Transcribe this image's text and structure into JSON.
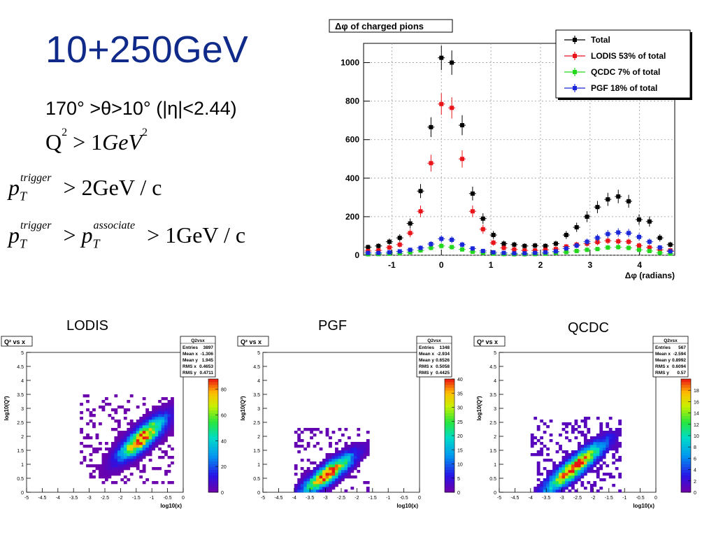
{
  "slide": {
    "title": "10+250GeV",
    "condition": "170° >θ>10° (|η|<2.44)",
    "formulas": {
      "q2_lhs": "Q",
      "q2_sup": "2",
      "q2_rhs": " > 1",
      "q2_unit": "GeV",
      "q2_unit_sup": "2",
      "pt_main": "p",
      "pt_sub": "T",
      "pt_trigger_sup": "trigger",
      "pt_trigger_rhs": " > 2GeV / c",
      "pt_assoc_sup": "associate",
      "pt_assoc_mid": " > ",
      "pt_assoc_rhs": " > 1GeV / c"
    }
  },
  "panel_labels": {
    "lodis": "LODIS",
    "pgf": "PGF",
    "qcdc": "QCDC"
  },
  "chart_data": [
    {
      "type": "scatter",
      "title": "Δφ of charged pions",
      "xlabel": "Δφ (radians)",
      "ylabel": "",
      "xlim": [
        -1.57,
        4.71
      ],
      "ylim": [
        0,
        1100
      ],
      "xticks": [
        -1,
        0,
        1,
        2,
        3,
        4
      ],
      "yticks": [
        0,
        200,
        400,
        600,
        800,
        1000
      ],
      "grid": true,
      "legend_position": "top-right",
      "series": [
        {
          "name": "Total",
          "color": "#000000",
          "x": [
            -1.48,
            -1.27,
            -1.05,
            -0.84,
            -0.63,
            -0.42,
            -0.21,
            0.0,
            0.21,
            0.42,
            0.63,
            0.84,
            1.05,
            1.26,
            1.47,
            1.68,
            1.89,
            2.1,
            2.31,
            2.52,
            2.73,
            2.94,
            3.15,
            3.36,
            3.57,
            3.78,
            3.99,
            4.2,
            4.41,
            4.62
          ],
          "y": [
            42,
            48,
            70,
            90,
            165,
            333,
            665,
            1025,
            1000,
            675,
            320,
            190,
            105,
            60,
            55,
            48,
            50,
            48,
            60,
            105,
            145,
            200,
            250,
            290,
            305,
            280,
            185,
            175,
            90,
            55
          ]
        },
        {
          "name": "LODIS 53% of total",
          "color": "#e8141a",
          "x": [
            -1.48,
            -1.27,
            -1.05,
            -0.84,
            -0.63,
            -0.42,
            -0.21,
            0.0,
            0.21,
            0.42,
            0.63,
            0.84,
            1.05,
            1.26,
            1.47,
            1.68,
            1.89,
            2.1,
            2.31,
            2.52,
            2.73,
            2.94,
            3.15,
            3.36,
            3.57,
            3.78,
            3.99,
            4.2,
            4.41,
            4.62
          ],
          "y": [
            22,
            25,
            40,
            55,
            115,
            228,
            478,
            785,
            765,
            500,
            228,
            135,
            65,
            38,
            30,
            25,
            25,
            28,
            32,
            45,
            55,
            60,
            68,
            75,
            72,
            70,
            50,
            40,
            28,
            25
          ]
        },
        {
          "name": "QCDC 7% of total",
          "color": "#22d81c",
          "x": [
            -1.48,
            -1.27,
            -1.05,
            -0.84,
            -0.63,
            -0.42,
            -0.21,
            0.0,
            0.21,
            0.42,
            0.63,
            0.84,
            1.05,
            1.26,
            1.47,
            1.68,
            1.89,
            2.1,
            2.31,
            2.52,
            2.73,
            2.94,
            3.15,
            3.36,
            3.57,
            3.78,
            3.99,
            4.2,
            4.41,
            4.62
          ],
          "y": [
            5,
            6,
            8,
            10,
            15,
            25,
            38,
            48,
            42,
            30,
            18,
            12,
            8,
            6,
            5,
            5,
            6,
            8,
            12,
            16,
            22,
            28,
            32,
            40,
            42,
            38,
            28,
            22,
            12,
            8
          ]
        },
        {
          "name": "PGF 18% of total",
          "color": "#1a28d8",
          "x": [
            -1.48,
            -1.27,
            -1.05,
            -0.84,
            -0.63,
            -0.42,
            -0.21,
            0.0,
            0.21,
            0.42,
            0.63,
            0.84,
            1.05,
            1.26,
            1.47,
            1.68,
            1.89,
            2.1,
            2.31,
            2.52,
            2.73,
            2.94,
            3.15,
            3.36,
            3.57,
            3.78,
            3.99,
            4.2,
            4.41,
            4.62
          ],
          "y": [
            12,
            12,
            15,
            20,
            28,
            38,
            58,
            85,
            80,
            55,
            35,
            22,
            15,
            12,
            10,
            10,
            12,
            15,
            20,
            35,
            50,
            70,
            90,
            110,
            118,
            115,
            95,
            70,
            40,
            20
          ]
        }
      ]
    },
    {
      "type": "heatmap",
      "key": "lodis",
      "title": "Q² vs x",
      "xlabel": "log10(x)",
      "ylabel": "log10(Q²)",
      "xlim": [
        -5,
        0
      ],
      "ylim": [
        0,
        5
      ],
      "xticks": [
        "-5",
        "-4.5",
        "-4",
        "-3.5",
        "-3",
        "-2.5",
        "-2",
        "-1.5",
        "-1",
        "-0.5",
        "0"
      ],
      "yticks": [
        "0",
        "0.5",
        "1",
        "1.5",
        "2",
        "2.5",
        "3",
        "3.5",
        "4",
        "4.5",
        "5"
      ],
      "zmax": 88,
      "zticks": [
        "0",
        "20",
        "40",
        "60",
        "80"
      ],
      "stats": {
        "title": "Q2vsx",
        "rows": [
          [
            "Entries",
            "3897"
          ],
          [
            "Mean x",
            "-1.306"
          ],
          [
            "Mean y",
            "1.945"
          ],
          [
            "RMS x",
            "0.4653"
          ],
          [
            "RMS y",
            "0.4711"
          ]
        ]
      },
      "cloud": {
        "cx": -1.306,
        "cy": 1.945,
        "sx": 0.4653,
        "sy": 0.4711,
        "rho": 0.82,
        "peak": 88,
        "x0": -3.3,
        "x1": -0.3,
        "y0": 0.3,
        "y1": 3.5
      }
    },
    {
      "type": "heatmap",
      "key": "pgf",
      "title": "Q² vs x",
      "xlabel": "log10(x)",
      "ylabel": "log10(Q²)",
      "xlim": [
        -5,
        0
      ],
      "ylim": [
        0,
        5
      ],
      "xticks": [
        "-5",
        "-4.5",
        "-4",
        "-3.5",
        "-3",
        "-2.5",
        "-2",
        "-1.5",
        "-1",
        "-0.5",
        "0"
      ],
      "yticks": [
        "0",
        "0.5",
        "1",
        "1.5",
        "2",
        "2.5",
        "3",
        "3.5",
        "4",
        "4.5",
        "5"
      ],
      "zmax": 40,
      "zticks": [
        "0",
        "5",
        "10",
        "15",
        "20",
        "25",
        "30",
        "35",
        "40"
      ],
      "stats": {
        "title": "Q2vsx",
        "rows": [
          [
            "Entries",
            "1348"
          ],
          [
            "Mean x",
            "-2.934"
          ],
          [
            "Mean y",
            "0.6526"
          ],
          [
            "RMS x",
            "0.5058"
          ],
          [
            "RMS y",
            "0.4425"
          ]
        ]
      },
      "cloud": {
        "cx": -2.934,
        "cy": 0.6526,
        "sx": 0.5058,
        "sy": 0.4425,
        "rho": 0.85,
        "peak": 40,
        "x0": -4.0,
        "x1": -1.6,
        "y0": 0.0,
        "y1": 2.3
      }
    },
    {
      "type": "heatmap",
      "key": "qcdc",
      "title": "Q² vs x",
      "xlabel": "log10(x)",
      "ylabel": "log10(Q²)",
      "xlim": [
        -5,
        0
      ],
      "ylim": [
        0,
        5
      ],
      "xticks": [
        "-5",
        "-4.5",
        "-4",
        "-3.5",
        "-3",
        "-2.5",
        "-2",
        "-1.5",
        "-1",
        "-0.5",
        "0"
      ],
      "yticks": [
        "0",
        "0.5",
        "1",
        "1.5",
        "2",
        "2.5",
        "3",
        "3.5",
        "4",
        "4.5",
        "5"
      ],
      "zmax": 20,
      "zticks": [
        "0",
        "2",
        "4",
        "6",
        "8",
        "10",
        "12",
        "14",
        "16",
        "18"
      ],
      "stats": {
        "title": "Q2vsx",
        "rows": [
          [
            "Entries",
            "567"
          ],
          [
            "Mean x",
            "-2.594"
          ],
          [
            "Mean y",
            "0.8992"
          ],
          [
            "RMS x",
            "0.6094"
          ],
          [
            "RMS y",
            "0.57"
          ]
        ]
      },
      "cloud": {
        "cx": -2.594,
        "cy": 0.8992,
        "sx": 0.6094,
        "sy": 0.57,
        "rho": 0.9,
        "peak": 20,
        "x0": -4.0,
        "x1": -1.1,
        "y0": 0.0,
        "y1": 2.7
      }
    }
  ]
}
